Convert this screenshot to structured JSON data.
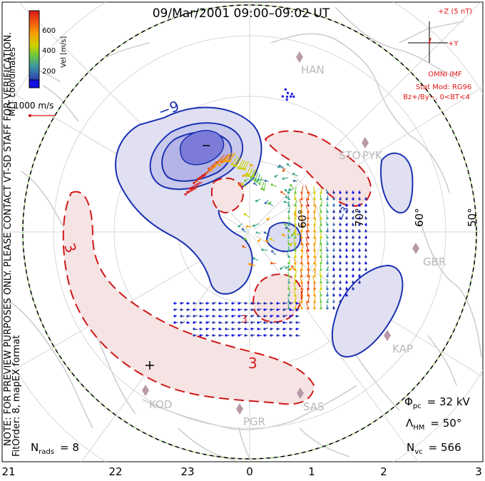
{
  "title": "09/Mar/2001 09:00–09:02 UT",
  "coordinates": "MLT coordinates",
  "colorbar": {
    "label": "Vel [m/s]",
    "ticks": [
      "600",
      "400",
      "200"
    ],
    "colors": [
      "#d81818",
      "#f05a10",
      "#f5a000",
      "#cfd000",
      "#6cc83c",
      "#3ca88a",
      "#3c6eb0",
      "#2030a8",
      "#1010e0"
    ]
  },
  "vector_scale": "1000 m/s",
  "imf": {
    "z_label": "+Z (5 nT)",
    "y_label": "+Y",
    "source": "OMNI IMF",
    "model": "Stat Mod: RG96",
    "condition": "Bz+/By−, 0<BT<4"
  },
  "disclaimer": "NOTE: FOR PREVIEW PURPOSES ONLY. PLEASE CONTACT VT-SD STAFF FOR VERIFICATION.",
  "fit_info": "FitOrder: 8, mapEX format",
  "stations": [
    "HAN",
    "STO",
    "PYK",
    "GBR",
    "KAP",
    "SAS",
    "PGR",
    "KOD"
  ],
  "latitude_labels": [
    "60°",
    "70°",
    "60°",
    "50°"
  ],
  "contour_labels": [
    "−9",
    "3",
    "3",
    "−3",
    "3"
  ],
  "mlt_labels": [
    "21",
    "22",
    "23",
    "0",
    "1",
    "2",
    "3"
  ],
  "stats": {
    "phi_symbol": "Φ",
    "phi_sub": "pc",
    "phi_value": "= 32 kV",
    "lambda_symbol": "Λ",
    "lambda_sub": "HM",
    "lambda_value": "= 50°",
    "nvc_symbol": "N",
    "nvc_sub": "vc",
    "nvc_value": "= 566",
    "nrads_symbol": "N",
    "nrads_sub": "rads",
    "nrads_value": "= 8"
  }
}
